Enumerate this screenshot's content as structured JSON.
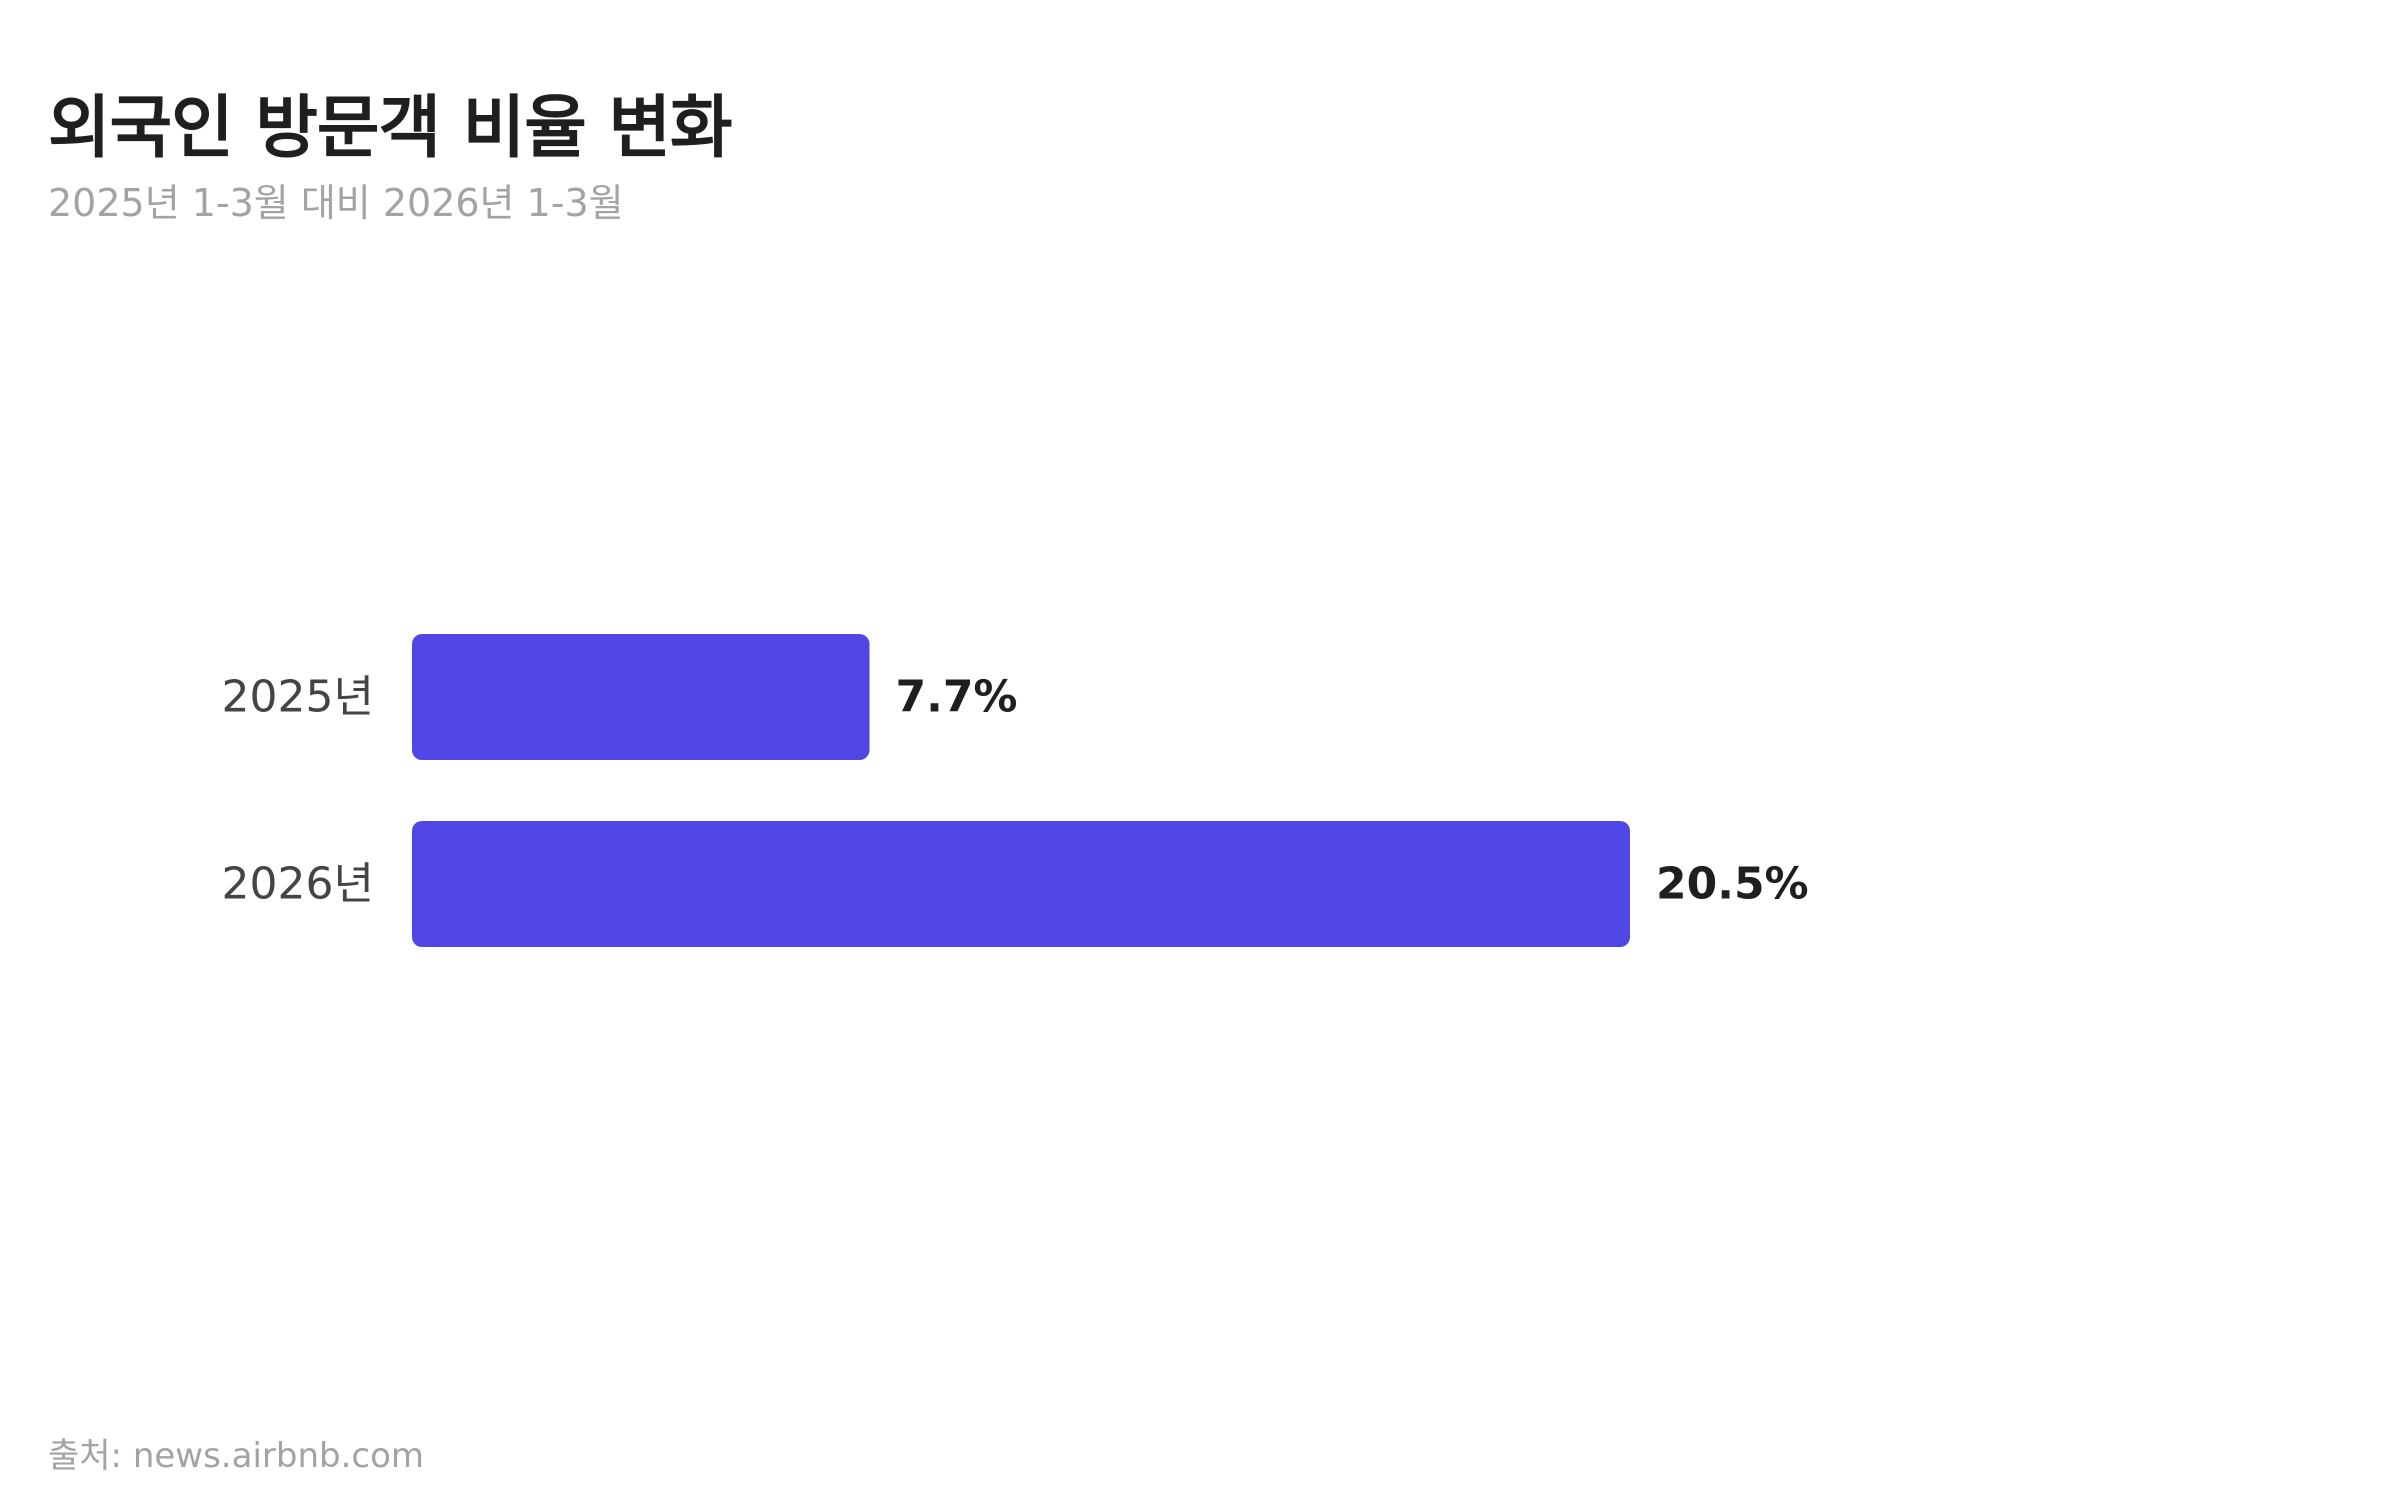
{
  "header": {
    "title": "외국인 방문객 비율 변화",
    "subtitle": "2025년 1-3월 대비 2026년 1-3월"
  },
  "footer": {
    "source": "출처: news.airbnb.com"
  },
  "colors": {
    "bar": "#5046e5",
    "title": "#1f1f1f",
    "muted": "#a3a3a3"
  },
  "chart_data": {
    "type": "bar",
    "orientation": "horizontal",
    "title": "외국인 방문객 비율 변화",
    "subtitle": "2025년 1-3월 대비 2026년 1-3월",
    "categories": [
      "2025년",
      "2026년"
    ],
    "values": [
      7.7,
      20.5
    ],
    "value_labels": [
      "7.7%",
      "20.5%"
    ],
    "unit": "%",
    "xlim": [
      0,
      20.5
    ],
    "grid": false,
    "axes_visible": false
  }
}
